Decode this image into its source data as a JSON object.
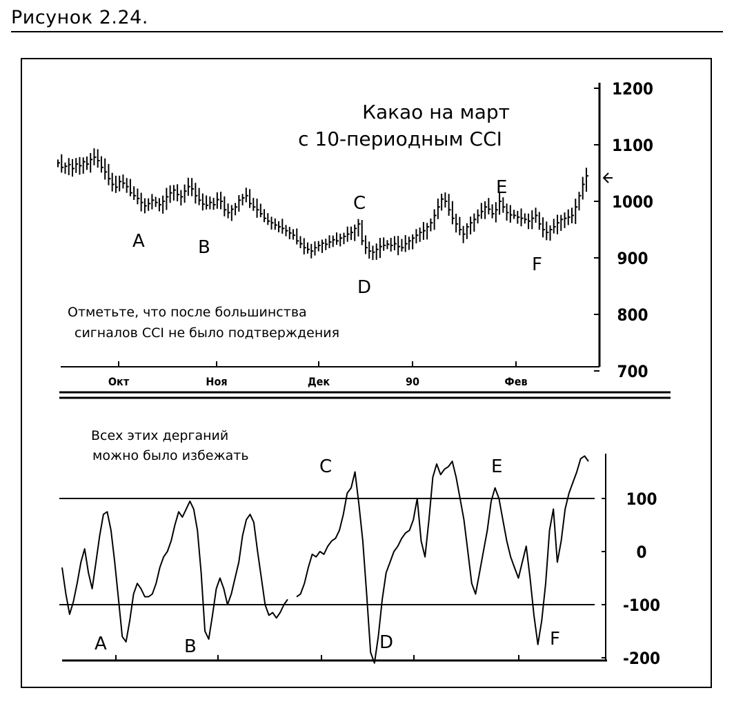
{
  "figure": {
    "caption": "Рисунок 2.24."
  },
  "chart_data": [
    {
      "type": "ohlc",
      "title_line1": "Какао на март",
      "title_line2": "с 10-периодным CCI",
      "yticks": [
        "1200",
        "1100",
        "1000",
        "900",
        "800",
        "700"
      ],
      "ytick_values": [
        1200,
        1100,
        1000,
        900,
        800,
        700
      ],
      "ylim": [
        700,
        1220
      ],
      "xticks": [
        "Окт",
        "Ноя",
        "Дек",
        "90",
        "Фев"
      ],
      "annotation_line1": "Отметьте, что после большинства",
      "annotation_line2": "сигналов CCI не было подтверждения",
      "point_labels": [
        "A",
        "B",
        "C",
        "D",
        "E",
        "F"
      ],
      "close_values": [
        1068,
        1060,
        1062,
        1065,
        1058,
        1066,
        1063,
        1070,
        1066,
        1074,
        1078,
        1072,
        1060,
        1052,
        1040,
        1030,
        1025,
        1035,
        1032,
        1026,
        1015,
        1010,
        1005,
        998,
        992,
        996,
        1002,
        998,
        994,
        1000,
        1008,
        1015,
        1020,
        1012,
        1008,
        1018,
        1026,
        1022,
        1010,
        1002,
        995,
        993,
        998,
        994,
        1003,
        1000,
        985,
        980,
        986,
        990,
        1002,
        1006,
        1010,
        996,
        990,
        985,
        978,
        970,
        965,
        962,
        958,
        955,
        952,
        948,
        944,
        940,
        930,
        925,
        918,
        915,
        912,
        918,
        922,
        926,
        924,
        928,
        932,
        930,
        935,
        938,
        942,
        945,
        952,
        960,
        930,
        918,
        912,
        910,
        915,
        920,
        922,
        924,
        922,
        925,
        920,
        918,
        925,
        930,
        935,
        940,
        945,
        948,
        955,
        962,
        975,
        990,
        1004,
        1000,
        985,
        970,
        960,
        950,
        942,
        955,
        962,
        968,
        975,
        982,
        990,
        986,
        978,
        985,
        1000,
        990,
        980,
        976,
        975,
        972,
        970,
        968,
        965,
        970,
        975,
        960,
        950,
        945,
        950,
        955,
        962,
        968,
        970,
        972,
        975,
        990,
        1010,
        1030,
        1045
      ],
      "current_value": 1048
    },
    {
      "type": "line",
      "yticks": [
        "100",
        "0",
        "-100",
        "-200"
      ],
      "ytick_values": [
        100,
        0,
        -100,
        -200
      ],
      "reference_lines": [
        100,
        -100
      ],
      "ylim": [
        -215,
        190
      ],
      "annotation_line1": "Всех этих дерганий",
      "annotation_line2": "можно было избежать",
      "point_labels": [
        "A",
        "B",
        "C",
        "D",
        "E",
        "F"
      ],
      "segments": [
        {
          "values": [
            -30,
            -80,
            -118,
            -95,
            -60,
            -20,
            5,
            -40,
            -70,
            -20,
            30,
            70,
            75,
            40,
            -20,
            -90,
            -160,
            -170,
            -130,
            -80,
            -60,
            -70,
            -85,
            -85,
            -80,
            -60,
            -30,
            -10,
            0,
            20,
            50,
            75,
            65,
            80,
            95,
            80,
            40,
            -40,
            -150,
            -165,
            -120,
            -70,
            -50,
            -70,
            -100,
            -80,
            -50,
            -20,
            30,
            60,
            70,
            55,
            0,
            -50,
            -100,
            -120,
            -115,
            -125,
            -115,
            -100,
            -90
          ]
        },
        {
          "values": [
            -85,
            -80,
            -60,
            -30,
            -5,
            -10,
            0,
            -5,
            10,
            20,
            25,
            40,
            70,
            110,
            120,
            150,
            90,
            20,
            -80,
            -190,
            -210,
            -160,
            -90,
            -40,
            -20,
            0,
            10,
            25,
            35,
            40,
            60,
            100,
            20,
            -10,
            60,
            140,
            165,
            145,
            155,
            160,
            170,
            140,
            100,
            60,
            0,
            -60,
            -80,
            -40,
            0,
            40,
            95,
            120,
            100,
            60,
            20,
            -10,
            -30,
            -50,
            -20,
            10,
            -50,
            -120,
            -175,
            -130,
            -60,
            40,
            80,
            -20,
            20,
            80,
            110,
            130,
            150,
            175,
            180,
            170
          ]
        }
      ]
    }
  ]
}
